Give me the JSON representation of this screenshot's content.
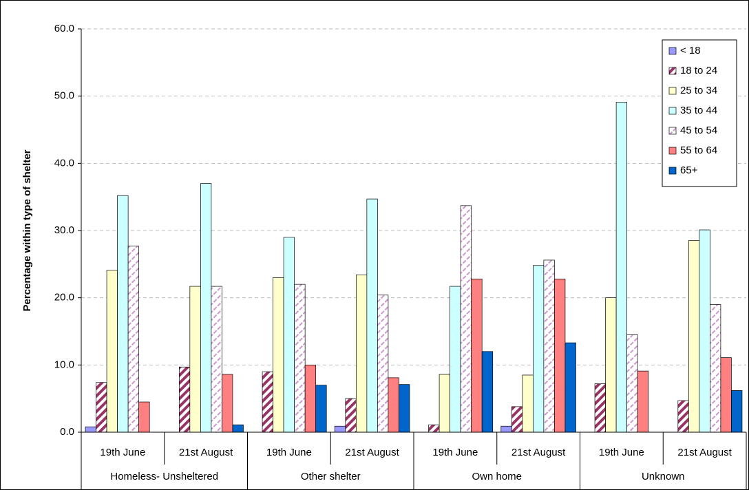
{
  "chart_data": {
    "type": "bar",
    "y_label": "Percentage within type of shelter",
    "categories": [
      "19th June",
      "21st August",
      "19th June",
      "21st August",
      "19th June",
      "21st August",
      "19th June",
      "21st August"
    ],
    "category_groups": [
      "Homeless- Unsheltered",
      "Other shelter",
      "Own home",
      "Unknown"
    ],
    "series": [
      {
        "name": "< 18",
        "color": "#9999ff",
        "values": [
          0.8,
          0,
          0,
          0.9,
          0,
          0.9,
          0,
          0
        ]
      },
      {
        "name": "18 to 24",
        "color": "#993366",
        "pattern": "stripe",
        "values": [
          7.4,
          9.7,
          9.0,
          5.0,
          1.1,
          3.8,
          7.2,
          4.7
        ]
      },
      {
        "name": "25 to 34",
        "color": "#ffffcc",
        "values": [
          24.1,
          21.7,
          23.0,
          23.4,
          8.6,
          8.5,
          20.0,
          28.5
        ]
      },
      {
        "name": "35 to 44",
        "color": "#ccffff",
        "values": [
          35.2,
          37.0,
          29.0,
          34.7,
          21.7,
          24.8,
          49.1,
          30.1
        ]
      },
      {
        "name": "45 to 54",
        "color": "#cc99cc",
        "pattern": "dash",
        "values": [
          27.7,
          21.7,
          22.0,
          20.4,
          33.7,
          25.6,
          14.5,
          19.0
        ]
      },
      {
        "name": "55 to 64",
        "color": "#ff8080",
        "values": [
          4.5,
          8.6,
          10.0,
          8.1,
          22.8,
          22.8,
          9.1,
          11.1
        ]
      },
      {
        "name": "65+",
        "color": "#0066cc",
        "values": [
          0,
          1.1,
          7.0,
          7.1,
          12.0,
          13.3,
          0,
          6.2
        ]
      }
    ],
    "ylim": [
      0,
      60
    ],
    "yticks": [
      {
        "value": 0,
        "label": "0.0"
      },
      {
        "value": 10,
        "label": "10.0"
      },
      {
        "value": 20,
        "label": "20.0"
      },
      {
        "value": 30,
        "label": "30.0"
      },
      {
        "value": 40,
        "label": "40.0"
      },
      {
        "value": 50,
        "label": "50.0"
      },
      {
        "value": 60,
        "label": "60.0"
      }
    ],
    "grid": true,
    "legend": "top-right"
  }
}
